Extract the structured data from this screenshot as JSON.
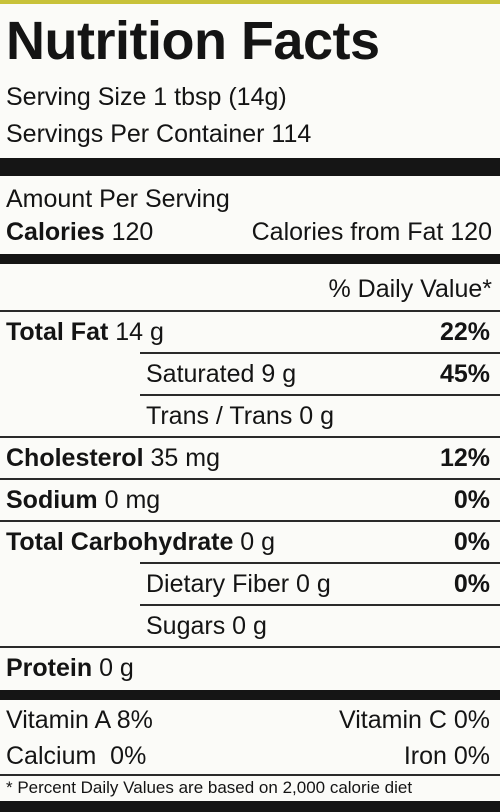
{
  "title": "Nutrition Facts",
  "serving_size": "Serving Size 1 tbsp (14g)",
  "servings_per_container": "Servings Per Container 114",
  "amount_per_serving": "Amount Per Serving",
  "calories": {
    "label": "Calories",
    "value": "120"
  },
  "calories_from_fat": "Calories from Fat 120",
  "daily_value_header": "% Daily Value*",
  "nutrients": [
    {
      "name": "Total Fat",
      "amount": "14 g",
      "daily_value": "22%",
      "indent": false
    },
    {
      "name": "Saturated",
      "amount": "9 g",
      "daily_value": "45%",
      "indent": true
    },
    {
      "name": "Trans / Trans",
      "amount": "0 g",
      "indent": true
    },
    {
      "name": "Cholesterol",
      "amount": "35 mg",
      "daily_value": "12%",
      "indent": false
    },
    {
      "name": "Sodium",
      "amount": "0 mg",
      "daily_value": "0%",
      "indent": false
    },
    {
      "name": "Total Carbohydrate",
      "amount": "0 g",
      "daily_value": "0%",
      "indent": false
    },
    {
      "name": "Dietary Fiber",
      "amount": "0 g",
      "daily_value": "0%",
      "indent": true
    },
    {
      "name": "Sugars",
      "amount": "0 g",
      "indent": true
    },
    {
      "name": "Protein",
      "amount": "0 g",
      "indent": false
    }
  ],
  "vitamins": [
    [
      "Vitamin A 8%",
      "Vitamin C 0%"
    ],
    [
      "Calcium  0%",
      "Iron 0%"
    ]
  ],
  "footnote": "* Percent Daily Values are based on 2,000 calorie diet"
}
